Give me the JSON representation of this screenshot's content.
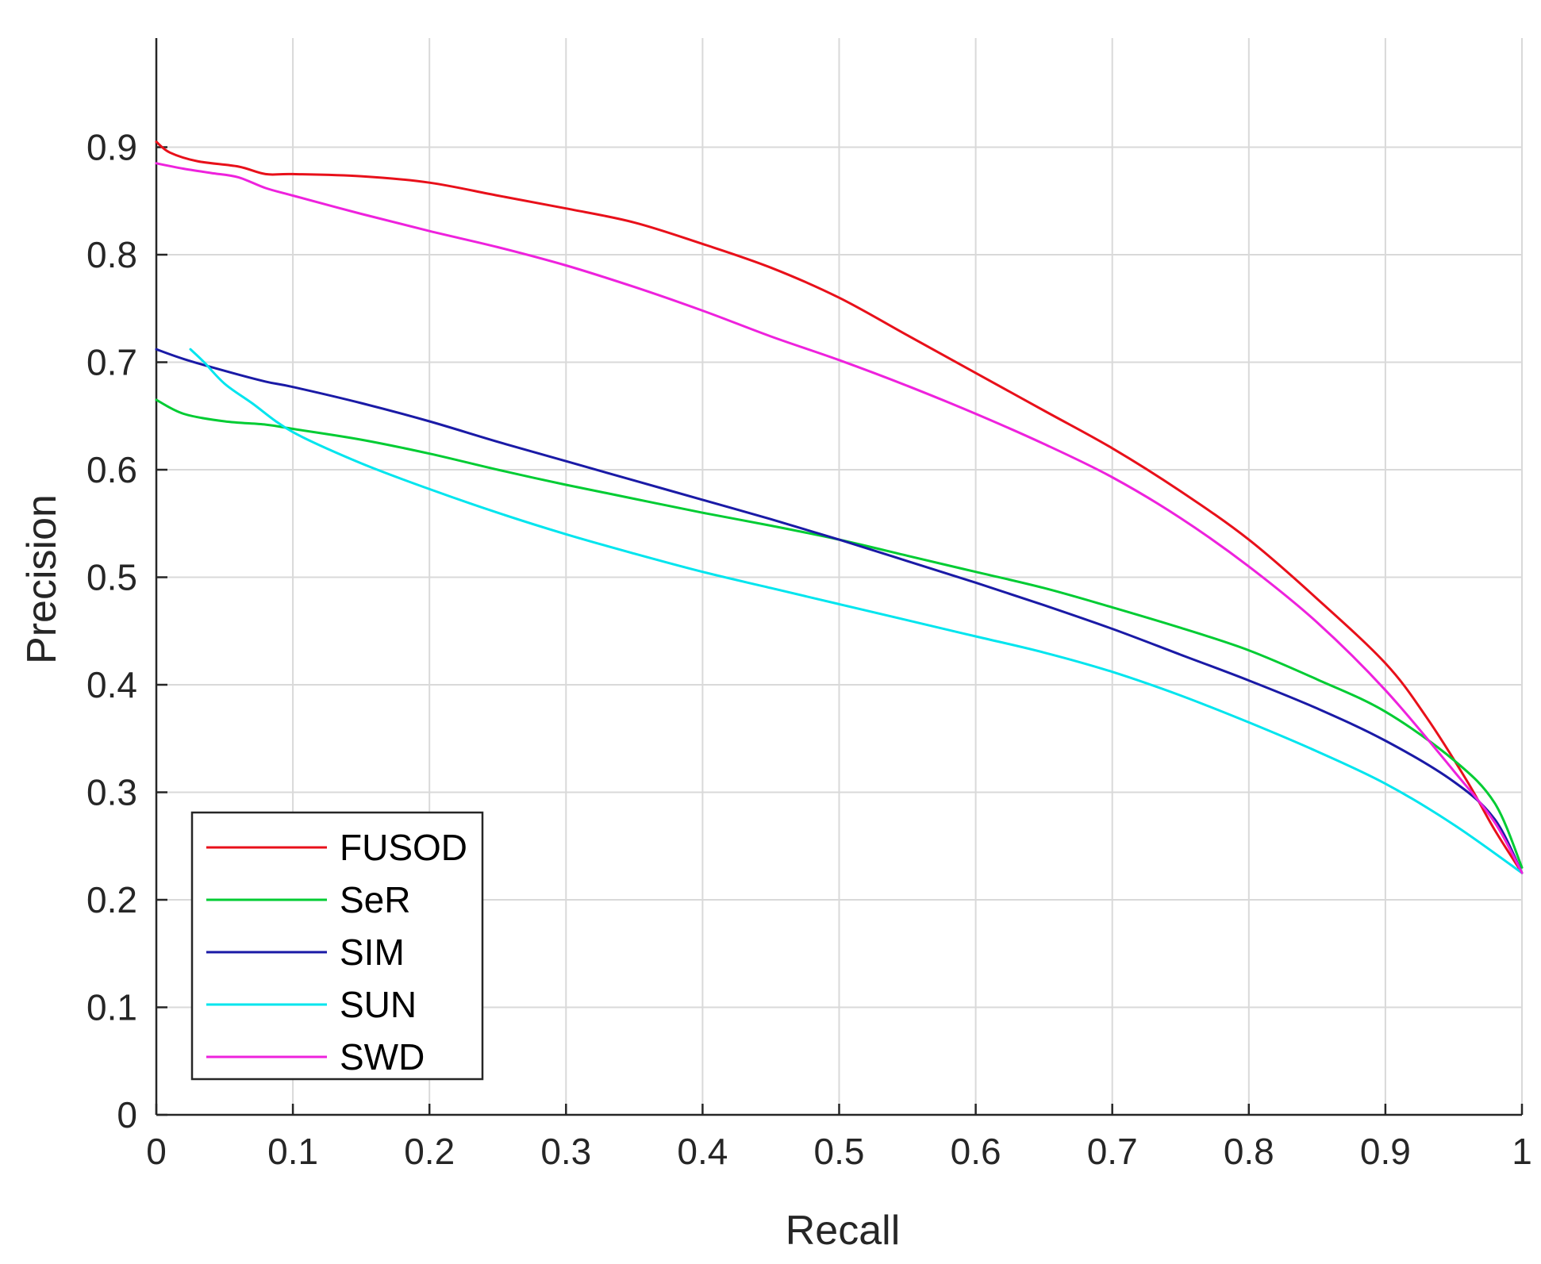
{
  "chart_data": {
    "type": "line",
    "xlabel": "Recall",
    "ylabel": "Precision",
    "xlim": [
      0,
      1
    ],
    "ylim": [
      0,
      1
    ],
    "x_ticks": [
      0,
      0.1,
      0.2,
      0.3,
      0.4,
      0.5,
      0.6,
      0.7,
      0.8,
      0.9,
      1
    ],
    "x_tick_labels": [
      "0",
      "0.1",
      "0.2",
      "0.3",
      "0.4",
      "0.5",
      "0.6",
      "0.7",
      "0.8",
      "0.9",
      "1"
    ],
    "y_ticks": [
      0,
      0.1,
      0.2,
      0.3,
      0.4,
      0.5,
      0.6,
      0.7,
      0.8,
      0.9
    ],
    "y_tick_labels": [
      "0",
      "0.1",
      "0.2",
      "0.3",
      "0.4",
      "0.5",
      "0.6",
      "0.7",
      "0.8",
      "0.9"
    ],
    "grid": true,
    "legend_position": "bottom-left",
    "series": [
      {
        "name": "FUSOD",
        "color": "#e8101a",
        "x": [
          0,
          0.01,
          0.03,
          0.06,
          0.08,
          0.1,
          0.15,
          0.2,
          0.25,
          0.3,
          0.35,
          0.4,
          0.45,
          0.5,
          0.55,
          0.6,
          0.65,
          0.7,
          0.75,
          0.8,
          0.85,
          0.9,
          0.93,
          0.96,
          0.98,
          1.0
        ],
        "y": [
          0.905,
          0.895,
          0.887,
          0.882,
          0.875,
          0.875,
          0.873,
          0.867,
          0.855,
          0.843,
          0.83,
          0.81,
          0.788,
          0.76,
          0.725,
          0.69,
          0.655,
          0.62,
          0.58,
          0.535,
          0.48,
          0.42,
          0.37,
          0.31,
          0.265,
          0.225
        ]
      },
      {
        "name": "SeR",
        "color": "#00cc33",
        "x": [
          0,
          0.02,
          0.05,
          0.08,
          0.1,
          0.15,
          0.2,
          0.25,
          0.3,
          0.35,
          0.4,
          0.45,
          0.5,
          0.55,
          0.6,
          0.65,
          0.7,
          0.75,
          0.8,
          0.85,
          0.9,
          0.95,
          0.98,
          1.0
        ],
        "y": [
          0.665,
          0.652,
          0.645,
          0.642,
          0.638,
          0.628,
          0.615,
          0.6,
          0.586,
          0.573,
          0.56,
          0.548,
          0.535,
          0.52,
          0.505,
          0.49,
          0.472,
          0.453,
          0.432,
          0.405,
          0.375,
          0.33,
          0.29,
          0.23
        ]
      },
      {
        "name": "SIM",
        "color": "#1a1aa6",
        "x": [
          0,
          0.02,
          0.05,
          0.08,
          0.1,
          0.15,
          0.2,
          0.25,
          0.3,
          0.35,
          0.4,
          0.45,
          0.5,
          0.55,
          0.6,
          0.65,
          0.7,
          0.75,
          0.8,
          0.85,
          0.9,
          0.95,
          0.98,
          1.0
        ],
        "y": [
          0.712,
          0.703,
          0.692,
          0.682,
          0.677,
          0.662,
          0.645,
          0.626,
          0.608,
          0.59,
          0.572,
          0.554,
          0.535,
          0.515,
          0.495,
          0.474,
          0.452,
          0.428,
          0.404,
          0.378,
          0.348,
          0.31,
          0.275,
          0.225
        ]
      },
      {
        "name": "SUN",
        "color": "#00e5ee",
        "x": [
          0.025,
          0.035,
          0.05,
          0.07,
          0.1,
          0.15,
          0.2,
          0.25,
          0.3,
          0.35,
          0.4,
          0.45,
          0.5,
          0.55,
          0.6,
          0.65,
          0.7,
          0.75,
          0.8,
          0.85,
          0.9,
          0.95,
          1.0
        ],
        "y": [
          0.712,
          0.7,
          0.68,
          0.662,
          0.635,
          0.606,
          0.582,
          0.56,
          0.54,
          0.522,
          0.505,
          0.49,
          0.475,
          0.46,
          0.445,
          0.43,
          0.412,
          0.39,
          0.365,
          0.338,
          0.308,
          0.27,
          0.225
        ]
      },
      {
        "name": "SWD",
        "color": "#ee22dd",
        "x": [
          0,
          0.02,
          0.04,
          0.06,
          0.08,
          0.1,
          0.15,
          0.2,
          0.25,
          0.3,
          0.35,
          0.4,
          0.45,
          0.5,
          0.55,
          0.6,
          0.65,
          0.7,
          0.75,
          0.8,
          0.85,
          0.9,
          0.95,
          0.98,
          1.0
        ],
        "y": [
          0.885,
          0.88,
          0.876,
          0.872,
          0.862,
          0.855,
          0.838,
          0.822,
          0.807,
          0.79,
          0.77,
          0.748,
          0.724,
          0.702,
          0.678,
          0.652,
          0.624,
          0.593,
          0.555,
          0.51,
          0.458,
          0.395,
          0.32,
          0.272,
          0.225
        ]
      }
    ]
  }
}
